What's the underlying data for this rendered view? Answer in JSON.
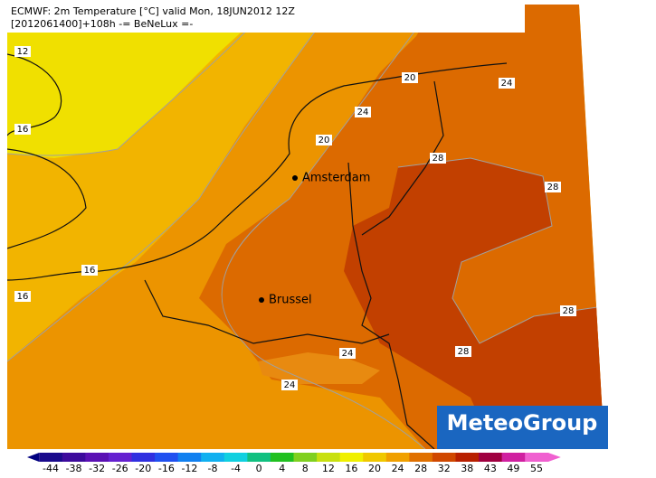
{
  "header": {
    "line1": "ECMWF: 2m Temperature [°C] valid Mon, 18JUN2012 12Z",
    "line2": "[2012061400]+108h -= BeNeLux =-"
  },
  "contour_labels": [
    "12",
    "16",
    "20",
    "24",
    "24",
    "20",
    "28",
    "28",
    "16",
    "16",
    "28",
    "28",
    "24",
    "24"
  ],
  "cities": [
    "Amsterdam",
    "Brussel"
  ],
  "logo": "MeteoGroup",
  "colorbar": {
    "ticks": [
      "-44",
      "-38",
      "-32",
      "-26",
      "-20",
      "-16",
      "-12",
      "-8",
      "-4",
      "0",
      "4",
      "8",
      "12",
      "16",
      "20",
      "24",
      "28",
      "32",
      "38",
      "43",
      "49",
      "55"
    ],
    "colors": [
      "#000080",
      "#1a0a8c",
      "#3c0a9c",
      "#5a10b4",
      "#6420d0",
      "#3030e0",
      "#2050f0",
      "#1080f0",
      "#10b0f0",
      "#10d0e0",
      "#10c080",
      "#20c020",
      "#80d020",
      "#c8e010",
      "#f0f000",
      "#f0c800",
      "#f0a000",
      "#e07000",
      "#d04800",
      "#b82000",
      "#a00040",
      "#d020a0",
      "#f060d0"
    ]
  }
}
